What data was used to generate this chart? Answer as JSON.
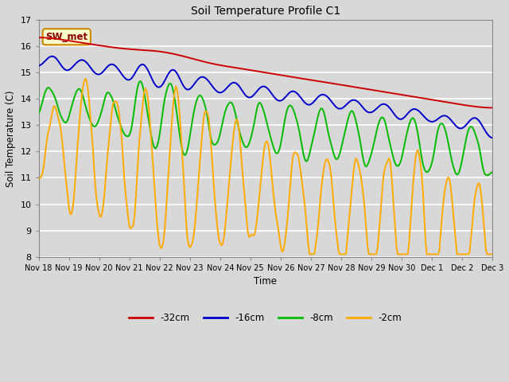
{
  "title": "Soil Temperature Profile C1",
  "xlabel": "Time",
  "ylabel": "Soil Temperature (C)",
  "ylim": [
    8.0,
    17.0
  ],
  "yticks": [
    8.0,
    9.0,
    10.0,
    11.0,
    12.0,
    13.0,
    14.0,
    15.0,
    16.0,
    17.0
  ],
  "legend_labels": [
    "-32cm",
    "-16cm",
    "-8cm",
    "-2cm"
  ],
  "line_colors": [
    "#cc0000",
    "#0000cc",
    "#00bb00",
    "#ffaa00"
  ],
  "annotation_text": "SW_met",
  "annotation_bg": "#ffffcc",
  "annotation_border": "#cc8800",
  "fig_bg": "#d8d8d8",
  "plot_bg": "#d8d8d8",
  "grid_color": "#ffffff"
}
